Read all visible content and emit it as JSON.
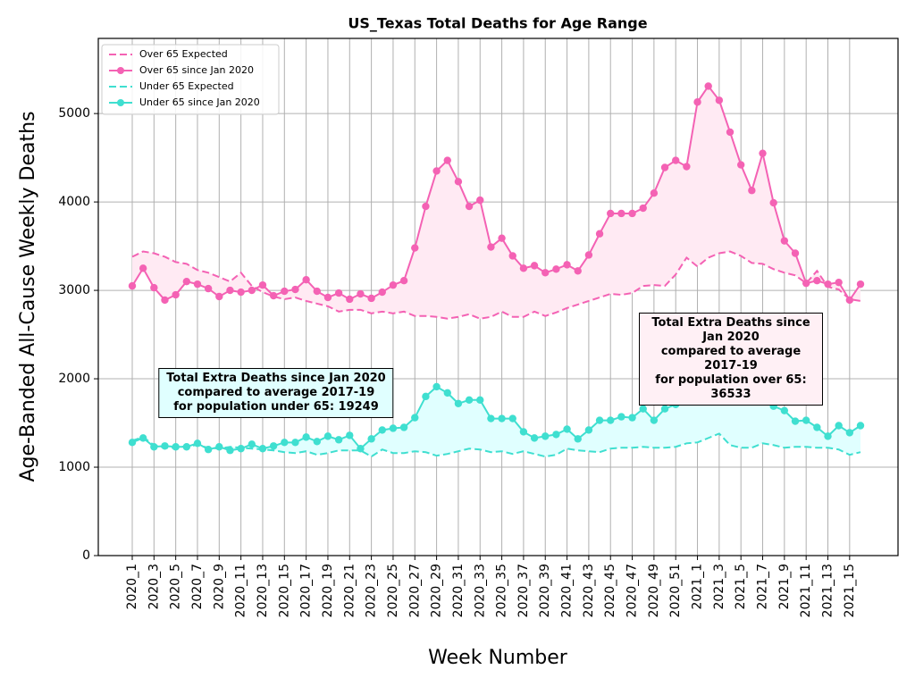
{
  "chart_data": {
    "type": "line",
    "title": "US_Texas Total Deaths for Age Range",
    "xlabel": "Week Number",
    "ylabel": "Age-Banded All-Cause Weekly Deaths",
    "categories": [
      "2020_1",
      null,
      "2020_3",
      null,
      "2020_5",
      null,
      "2020_7",
      null,
      "2020_9",
      null,
      "2020_11",
      null,
      "2020_13",
      null,
      "2020_15",
      null,
      "2020_17",
      null,
      "2020_19",
      null,
      "2020_21",
      null,
      "2020_23",
      null,
      "2020_25",
      null,
      "2020_27",
      null,
      "2020_29",
      null,
      "2020_31",
      null,
      "2020_33",
      null,
      "2020_35",
      null,
      "2020_37",
      null,
      "2020_39",
      null,
      "2020_41",
      null,
      "2020_43",
      null,
      "2020_45",
      null,
      "2020_47",
      null,
      "2020_49",
      null,
      "2020_51",
      null,
      "2021_1",
      null,
      "2021_3",
      null,
      "2021_5",
      null,
      "2021_7",
      null,
      "2021_9",
      null,
      "2021_11",
      null,
      "2021_13",
      null,
      "2021_15",
      null
    ],
    "series": [
      {
        "name": "Over 65 Expected",
        "color": "#f462b4",
        "linestyle": "dashed",
        "values": [
          3380,
          3440,
          3420,
          3380,
          3320,
          3300,
          3230,
          3200,
          3150,
          3100,
          3200,
          3050,
          2980,
          2930,
          2900,
          2920,
          2880,
          2850,
          2820,
          2760,
          2780,
          2780,
          2740,
          2760,
          2740,
          2760,
          2710,
          2710,
          2700,
          2680,
          2700,
          2730,
          2680,
          2700,
          2760,
          2700,
          2700,
          2760,
          2710,
          2750,
          2800,
          2840,
          2880,
          2920,
          2960,
          2950,
          2970,
          3050,
          3060,
          3050,
          3180,
          3370,
          3270,
          3370,
          3420,
          3440,
          3390,
          3310,
          3300,
          3240,
          3200,
          3170,
          3080,
          3220,
          3040,
          3010,
          2900,
          2880
        ]
      },
      {
        "name": "Over 65 since Jan 2020",
        "color": "#f462b4",
        "linestyle": "solid",
        "marker": true,
        "fill": "#ffeaf3",
        "values": [
          3050,
          3250,
          3030,
          2890,
          2950,
          3100,
          3070,
          3020,
          2930,
          3000,
          2980,
          3000,
          3060,
          2940,
          2990,
          3010,
          3120,
          2990,
          2920,
          2970,
          2900,
          2960,
          2910,
          2980,
          3060,
          3110,
          3480,
          3950,
          4350,
          4470,
          4230,
          3950,
          4020,
          3490,
          3590,
          3390,
          3250,
          3280,
          3200,
          3240,
          3290,
          3220,
          3400,
          3640,
          3870,
          3870,
          3870,
          3930,
          4100,
          4390,
          4470,
          4400,
          5130,
          5310,
          5150,
          4790,
          4420,
          4130,
          4550,
          3990,
          3560,
          3420,
          3080,
          3110,
          3070,
          3090,
          2890,
          3070
        ]
      },
      {
        "name": "Under 65 Expected",
        "color": "#3fdfd0",
        "linestyle": "dashed",
        "values": [
          1300,
          1340,
          1250,
          1220,
          1220,
          1240,
          1250,
          1220,
          1210,
          1230,
          1220,
          1210,
          1200,
          1190,
          1170,
          1160,
          1180,
          1140,
          1160,
          1190,
          1190,
          1190,
          1120,
          1200,
          1160,
          1160,
          1180,
          1170,
          1130,
          1150,
          1180,
          1210,
          1200,
          1170,
          1180,
          1150,
          1180,
          1150,
          1120,
          1140,
          1210,
          1190,
          1180,
          1170,
          1210,
          1220,
          1220,
          1230,
          1220,
          1220,
          1230,
          1270,
          1280,
          1330,
          1380,
          1250,
          1220,
          1220,
          1270,
          1250,
          1220,
          1230,
          1230,
          1220,
          1220,
          1200,
          1140,
          1170
        ]
      },
      {
        "name": "Under 65 since Jan 2020",
        "color": "#3fdfd0",
        "linestyle": "solid",
        "marker": true,
        "fill": "#e0ffff",
        "values": [
          1280,
          1330,
          1230,
          1240,
          1230,
          1230,
          1270,
          1200,
          1230,
          1190,
          1210,
          1260,
          1210,
          1240,
          1280,
          1280,
          1340,
          1290,
          1350,
          1310,
          1360,
          1210,
          1320,
          1420,
          1440,
          1450,
          1560,
          1800,
          1910,
          1840,
          1720,
          1760,
          1760,
          1550,
          1550,
          1550,
          1400,
          1330,
          1350,
          1370,
          1430,
          1320,
          1420,
          1530,
          1530,
          1570,
          1560,
          1660,
          1530,
          1660,
          1710,
          1760,
          1880,
          1900,
          1880,
          1870,
          1840,
          1780,
          1880,
          1690,
          1640,
          1520,
          1530,
          1450,
          1350,
          1470,
          1390,
          1470
        ]
      }
    ],
    "ylim": [
      0,
      5850
    ],
    "yticks": [
      0,
      1000,
      2000,
      3000,
      4000,
      5000
    ],
    "grid": true,
    "legend": "upper left",
    "annotations": [
      {
        "text": "Total Extra Deaths since Jan 2020\ncompared to average 2017-19\nfor population under 65: 19249",
        "facecolor": "#e0ffff"
      },
      {
        "text": "Total Extra Deaths since Jan 2020\ncompared to average 2017-19\nfor population over 65: 36533",
        "facecolor": "#fff0f5"
      }
    ]
  }
}
